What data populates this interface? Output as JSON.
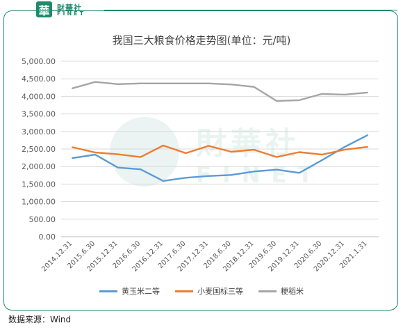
{
  "branding": {
    "logo_char": "華",
    "name_cn": "財華社",
    "name_en": "FINET",
    "watermark_char": "華",
    "watermark_cn": "財華社",
    "watermark_en": "FINET"
  },
  "colors": {
    "brand": "#1d8a6b",
    "corn": "#5b9bd5",
    "wheat": "#ed7d31",
    "rice": "#a5a5a5",
    "grid": "#d9d9d9",
    "axis_text": "#595959"
  },
  "source_text": "数据来源：Wind",
  "chart_data": {
    "type": "line",
    "title": "我国三大粮食价格走势图(单位：元/吨)",
    "xlabel": "",
    "ylabel": "",
    "ylim": [
      0,
      5000
    ],
    "yticks": [
      "0.00",
      "500.00",
      "1,000.00",
      "1,500.00",
      "2,000.00",
      "2,500.00",
      "3,000.00",
      "3,500.00",
      "4,000.00",
      "4,500.00",
      "5,000.00"
    ],
    "ytick_values": [
      0,
      500,
      1000,
      1500,
      2000,
      2500,
      3000,
      3500,
      4000,
      4500,
      5000
    ],
    "grid": true,
    "legend_position": "bottom",
    "categories": [
      "2014.12.31",
      "2015.6.30",
      "2015.12.31",
      "2016.6.30",
      "2016.12.31",
      "2017.6.30",
      "2017.12.31",
      "2018.6.30",
      "2018.12.31",
      "2019.6.30",
      "2019.12.31",
      "2020.6.30",
      "2020.12.31",
      "2021.1.31"
    ],
    "series": [
      {
        "name": "黄玉米二等",
        "color": "#5b9bd5",
        "values": [
          2240,
          2340,
          1970,
          1920,
          1590,
          1680,
          1730,
          1760,
          1860,
          1910,
          1820,
          2180,
          2560,
          2890
        ]
      },
      {
        "name": "小麦国标三等",
        "color": "#ed7d31",
        "values": [
          2550,
          2400,
          2350,
          2270,
          2600,
          2380,
          2590,
          2420,
          2480,
          2270,
          2410,
          2340,
          2480,
          2560
        ]
      },
      {
        "name": "粳稻米",
        "color": "#a5a5a5",
        "values": [
          4230,
          4410,
          4350,
          4370,
          4370,
          4370,
          4370,
          4340,
          4270,
          3870,
          3890,
          4070,
          4050,
          4110
        ]
      }
    ]
  }
}
